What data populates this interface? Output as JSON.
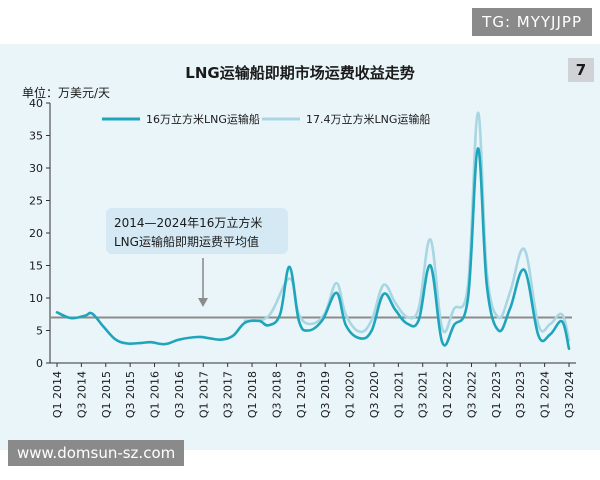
{
  "watermark_top": "TG: MYYJJPP",
  "watermark_bottom": "www.domsun-sz.com",
  "figure_number": "7",
  "chart_data": {
    "type": "line",
    "title": "LNG运输船即期市场运费收益走势",
    "unit": "单位：万美元/天",
    "ylim": [
      0,
      40
    ],
    "yticks": [
      0,
      5,
      10,
      15,
      20,
      25,
      30,
      35,
      40
    ],
    "xlabels": [
      "Q1 2014",
      "Q3 2014",
      "Q1 2015",
      "Q3 2015",
      "Q1 2016",
      "Q3 2016",
      "Q1 2017",
      "Q3 2017",
      "Q1 2018",
      "Q3 2018",
      "Q1 2019",
      "Q3 2019",
      "Q1 2020",
      "Q3 2020",
      "Q1 2021",
      "Q3 2021",
      "Q1 2022",
      "Q3 2022",
      "Q1 2023",
      "Q3 2023",
      "Q1 2024",
      "Q3 2024"
    ],
    "x_range": [
      2014.0,
      2024.9
    ],
    "grid": false,
    "legend_position": "top",
    "series": [
      {
        "name": "16万立方米LNG运输船",
        "color": "#1ea5bb",
        "points": [
          [
            2014.0,
            7.8
          ],
          [
            2014.3,
            6.9
          ],
          [
            2014.6,
            7.3
          ],
          [
            2014.75,
            7.6
          ],
          [
            2015.0,
            5.5
          ],
          [
            2015.25,
            3.6
          ],
          [
            2015.5,
            3.0
          ],
          [
            2015.8,
            3.1
          ],
          [
            2016.0,
            3.2
          ],
          [
            2016.3,
            2.9
          ],
          [
            2016.6,
            3.6
          ],
          [
            2017.0,
            4.0
          ],
          [
            2017.25,
            3.8
          ],
          [
            2017.5,
            3.6
          ],
          [
            2017.75,
            4.2
          ],
          [
            2018.0,
            6.2
          ],
          [
            2018.3,
            6.5
          ],
          [
            2018.5,
            5.8
          ],
          [
            2018.75,
            7.5
          ],
          [
            2018.95,
            14.8
          ],
          [
            2019.15,
            6.5
          ],
          [
            2019.35,
            5.0
          ],
          [
            2019.65,
            6.6
          ],
          [
            2019.95,
            10.8
          ],
          [
            2020.15,
            5.8
          ],
          [
            2020.45,
            3.8
          ],
          [
            2020.7,
            5.0
          ],
          [
            2020.95,
            10.6
          ],
          [
            2021.2,
            8.2
          ],
          [
            2021.45,
            6.1
          ],
          [
            2021.7,
            6.6
          ],
          [
            2021.95,
            15.0
          ],
          [
            2022.2,
            3.2
          ],
          [
            2022.45,
            5.8
          ],
          [
            2022.75,
            10.0
          ],
          [
            2022.96,
            33.0
          ],
          [
            2023.15,
            12.0
          ],
          [
            2023.4,
            5.0
          ],
          [
            2023.65,
            8.5
          ],
          [
            2023.95,
            14.3
          ],
          [
            2024.25,
            4.2
          ],
          [
            2024.5,
            4.4
          ],
          [
            2024.75,
            6.4
          ],
          [
            2024.9,
            2.2
          ]
        ]
      },
      {
        "name": "17.4万立方米LNG运输船",
        "color": "#a9d6e3",
        "points": [
          [
            2018.0,
            6.5
          ],
          [
            2018.5,
            7.2
          ],
          [
            2018.95,
            13.0
          ],
          [
            2019.15,
            7.5
          ],
          [
            2019.4,
            6.0
          ],
          [
            2019.7,
            7.6
          ],
          [
            2019.95,
            12.3
          ],
          [
            2020.15,
            7.4
          ],
          [
            2020.45,
            4.8
          ],
          [
            2020.7,
            6.6
          ],
          [
            2020.95,
            12.0
          ],
          [
            2021.2,
            9.3
          ],
          [
            2021.45,
            7.1
          ],
          [
            2021.7,
            8.4
          ],
          [
            2021.95,
            19.0
          ],
          [
            2022.2,
            5.3
          ],
          [
            2022.45,
            8.3
          ],
          [
            2022.75,
            12.0
          ],
          [
            2022.96,
            38.5
          ],
          [
            2023.15,
            14.0
          ],
          [
            2023.4,
            7.0
          ],
          [
            2023.65,
            11.0
          ],
          [
            2023.95,
            17.5
          ],
          [
            2024.25,
            5.8
          ],
          [
            2024.5,
            6.0
          ],
          [
            2024.75,
            7.5
          ],
          [
            2024.9,
            3.5
          ]
        ]
      }
    ],
    "reference_line": {
      "value": 7.0,
      "label": "2014—2024年16万立方米 LNG运输船即期运费平均值"
    },
    "annotation": {
      "line1": "2014—2024年16万立方米",
      "line2": "LNG运输船即期运费平均值"
    }
  }
}
